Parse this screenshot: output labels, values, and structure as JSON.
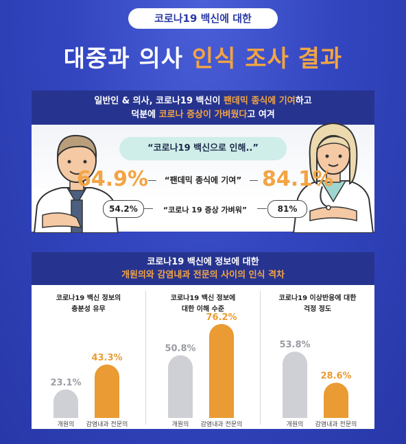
{
  "header": {
    "badge": "코로나19 백신에 대한",
    "title_part1": "대중과 의사",
    "title_part2": "인식 조사 결과"
  },
  "section1": {
    "heading_line1_a": "일반인 & 의사, 코로나19 백신이 ",
    "heading_line1_b": "팬데믹 종식에 기여",
    "heading_line1_c": "하고",
    "heading_line2_a": "덕분에 ",
    "heading_line2_b": "코로나 증상이 가벼웠다",
    "heading_line2_c": "고 여겨",
    "quote": "“코로나19 백신으로 인해..”",
    "item1_label": "“팬데믹 종식에 기여”",
    "item1_public": "64.9%",
    "item1_doctor": "84.1%",
    "item2_label": "“코로나 19 증상 가벼워”",
    "item2_public": "54.2%",
    "item2_doctor": "81%"
  },
  "section2": {
    "heading_line1": "코로나19 백신에 정보에 대한",
    "heading_line2": "개원의와 감염내과 전문의 사이의 인식 격차"
  },
  "chart_data": [
    {
      "type": "bar",
      "title": "코로나19 백신 정보의 충분성 유무",
      "categories": [
        "개원의",
        "감염내과 전문의"
      ],
      "values": [
        23.1,
        43.3
      ],
      "value_labels": [
        "23.1%",
        "43.3%"
      ],
      "colors": [
        "#cfd0d6",
        "#ea9b33"
      ]
    },
    {
      "type": "bar",
      "title": "코로나19 백신 정보에 대한 이해 수준",
      "categories": [
        "개원의",
        "감염내과 전문의"
      ],
      "values": [
        50.8,
        76.2
      ],
      "value_labels": [
        "50.8%",
        "76.2%"
      ],
      "colors": [
        "#cfd0d6",
        "#ea9b33"
      ]
    },
    {
      "type": "bar",
      "title": "코로나19 이상반응에 대한 걱정 정도",
      "categories": [
        "개원의",
        "감염내과 전문의"
      ],
      "values": [
        53.8,
        28.6
      ],
      "value_labels": [
        "53.8%",
        "28.6%"
      ],
      "colors": [
        "#cfd0d6",
        "#ea9b33"
      ]
    }
  ],
  "panel_titles": [
    [
      "코로나19 백신 정보의",
      "충분성 유무"
    ],
    [
      "코로나19 백신 정보에",
      "대한 이해 수준"
    ],
    [
      "코로나19 이상반응에 대한",
      "걱정 정도"
    ]
  ]
}
